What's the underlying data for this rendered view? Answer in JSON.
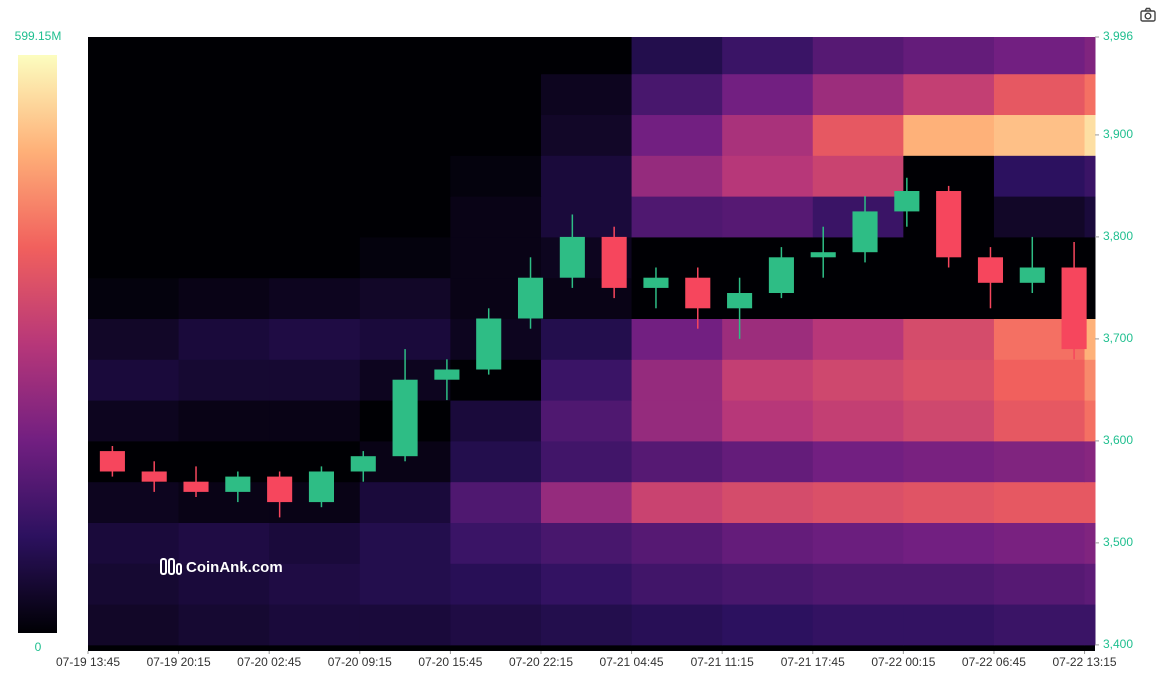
{
  "chart_data": {
    "type": "heatmap",
    "watermark": "CoinAnk.com",
    "xlim": [
      "07-19 13:45",
      "07-22 14:00"
    ],
    "ylim": [
      3394,
      3996
    ],
    "xticks": [
      "07-19 13:45",
      "07-19 20:15",
      "07-20 02:45",
      "07-20 09:15",
      "07-20 15:45",
      "07-20 22:15",
      "07-21 04:45",
      "07-21 11:15",
      "07-21 17:45",
      "07-22 00:15",
      "07-22 06:45",
      "07-22 13:15"
    ],
    "yticks": [
      {
        "value": 3400,
        "label": "3,400"
      },
      {
        "value": 3500,
        "label": "3,500"
      },
      {
        "value": 3600,
        "label": "3,600"
      },
      {
        "value": 3700,
        "label": "3,700"
      },
      {
        "value": 3800,
        "label": "3,800"
      },
      {
        "value": 3900,
        "label": "3,900"
      },
      {
        "value": 3996,
        "label": "3,996"
      }
    ],
    "colorbar": {
      "range": [
        0,
        599.15
      ],
      "ticks": [
        0,
        {
          "value": 599.15,
          "label": "599.15M"
        }
      ],
      "colorscale": [
        "#000004",
        "#2c115f",
        "#721f81",
        "#b73779",
        "#f1605d",
        "#feb078",
        "#fcfdbf"
      ]
    },
    "heatmap": {
      "x_edges": [
        "07-19 13:45",
        "07-19 20:15",
        "07-20 02:45",
        "07-20 09:15",
        "07-20 15:45",
        "07-20 22:15",
        "07-21 04:45",
        "07-21 11:15",
        "07-21 17:45",
        "07-22 00:15",
        "07-22 06:45",
        "07-22 13:15",
        "07-22 14:00"
      ],
      "y_edges": [
        3400,
        3440,
        3480,
        3520,
        3560,
        3600,
        3640,
        3680,
        3720,
        3760,
        3800,
        3840,
        3880,
        3920,
        3960,
        3996
      ],
      "values": [
        [
          40,
          50,
          60,
          60,
          70,
          80,
          90,
          100,
          110,
          110,
          120,
          120
        ],
        [
          50,
          60,
          70,
          80,
          90,
          110,
          130,
          140,
          150,
          150,
          160,
          170
        ],
        [
          60,
          70,
          60,
          80,
          120,
          140,
          160,
          180,
          190,
          200,
          210,
          220
        ],
        [
          30,
          20,
          20,
          60,
          150,
          250,
          330,
          350,
          360,
          370,
          380,
          380
        ],
        [
          0,
          0,
          0,
          20,
          80,
          130,
          160,
          180,
          200,
          210,
          220,
          230
        ],
        [
          30,
          20,
          20,
          0,
          60,
          150,
          250,
          300,
          320,
          340,
          380,
          420
        ],
        [
          60,
          50,
          50,
          30,
          0,
          120,
          250,
          320,
          340,
          360,
          400,
          450
        ],
        [
          40,
          60,
          70,
          60,
          30,
          80,
          200,
          260,
          300,
          350,
          420,
          500
        ],
        [
          10,
          20,
          30,
          40,
          20,
          20,
          0,
          0,
          0,
          0,
          0,
          0
        ],
        [
          0,
          0,
          0,
          10,
          20,
          30,
          0,
          0,
          0,
          0,
          0,
          0
        ],
        [
          0,
          0,
          0,
          0,
          20,
          60,
          150,
          160,
          120,
          0,
          40,
          60
        ],
        [
          0,
          0,
          0,
          0,
          10,
          60,
          250,
          300,
          330,
          0,
          100,
          120
        ],
        [
          0,
          0,
          0,
          0,
          0,
          40,
          200,
          280,
          380,
          500,
          520,
          560
        ],
        [
          0,
          0,
          0,
          0,
          0,
          30,
          140,
          200,
          260,
          320,
          380,
          420
        ],
        [
          0,
          0,
          0,
          0,
          0,
          0,
          80,
          120,
          160,
          180,
          200,
          220
        ]
      ]
    },
    "candles": {
      "up_color": "#2ebd85",
      "down_color": "#f6465d",
      "x": [
        "07-19 14:00",
        "07-19 17:00",
        "07-19 20:00",
        "07-19 23:00",
        "07-20 02:00",
        "07-20 05:00",
        "07-20 08:00",
        "07-20 11:00",
        "07-20 14:00",
        "07-20 17:00",
        "07-20 20:00",
        "07-20 23:00",
        "07-21 02:00",
        "07-21 05:00",
        "07-21 08:00",
        "07-21 11:00",
        "07-21 14:00",
        "07-21 17:00",
        "07-21 20:00",
        "07-21 23:00",
        "07-22 02:00",
        "07-22 05:00",
        "07-22 08:00",
        "07-22 11:00"
      ],
      "open": [
        3590,
        3570,
        3560,
        3550,
        3565,
        3540,
        3570,
        3585,
        3660,
        3670,
        3720,
        3760,
        3800,
        3750,
        3760,
        3730,
        3745,
        3780,
        3785,
        3825,
        3845,
        3780,
        3755,
        3770
      ],
      "high": [
        3595,
        3580,
        3575,
        3570,
        3570,
        3575,
        3590,
        3690,
        3680,
        3730,
        3780,
        3822,
        3810,
        3770,
        3770,
        3760,
        3790,
        3810,
        3840,
        3858,
        3850,
        3790,
        3800,
        3795
      ],
      "low": [
        3565,
        3550,
        3545,
        3540,
        3525,
        3535,
        3560,
        3580,
        3640,
        3665,
        3710,
        3750,
        3740,
        3730,
        3710,
        3700,
        3740,
        3760,
        3775,
        3810,
        3770,
        3730,
        3745,
        3680
      ],
      "close": [
        3570,
        3560,
        3550,
        3565,
        3540,
        3570,
        3585,
        3660,
        3670,
        3720,
        3760,
        3800,
        3750,
        3760,
        3730,
        3745,
        3780,
        3785,
        3825,
        3845,
        3780,
        3755,
        3770,
        3690
      ]
    }
  }
}
